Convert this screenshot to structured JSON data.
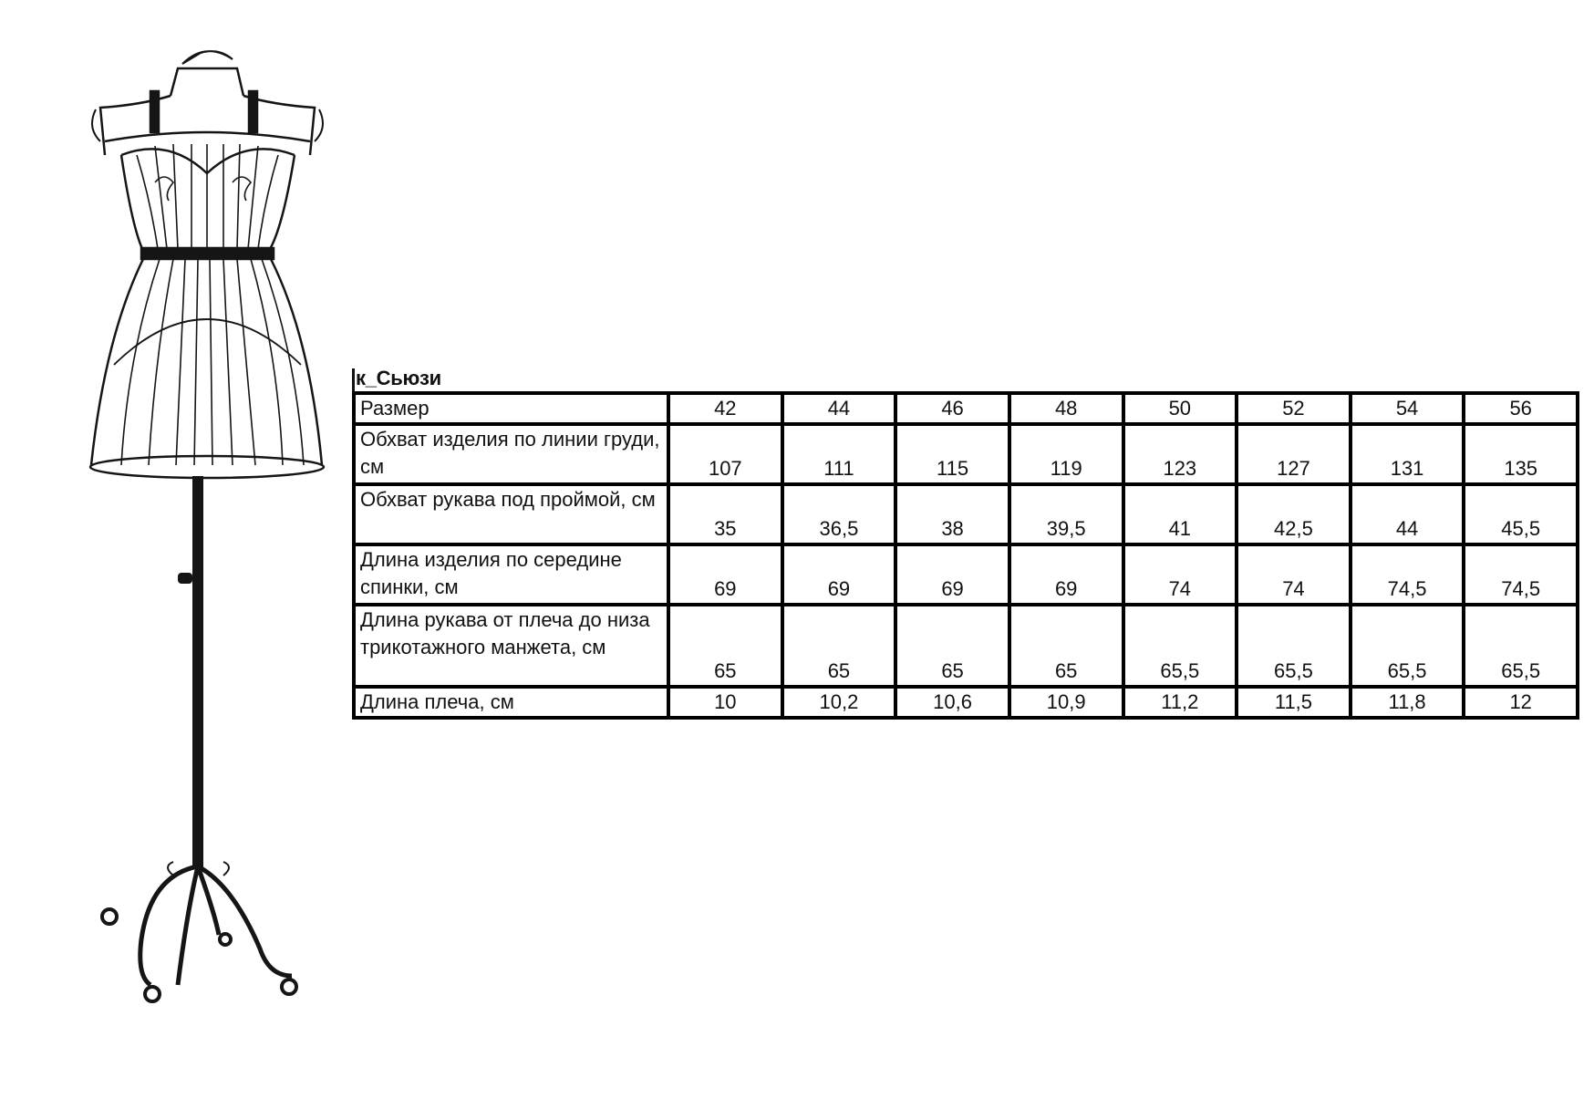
{
  "title": "к_Сьюзи",
  "table": {
    "header": {
      "label": "Размер",
      "values": [
        "42",
        "44",
        "46",
        "48",
        "50",
        "52",
        "54",
        "56"
      ]
    },
    "rows": [
      {
        "label": "Обхват изделия по линии груди, см",
        "values": [
          "107",
          "111",
          "115",
          "119",
          "123",
          "127",
          "131",
          "135"
        ]
      },
      {
        "label": "Обхват рукава под проймой, см",
        "values": [
          "35",
          "36,5",
          "38",
          "39,5",
          "41",
          "42,5",
          "44",
          "45,5"
        ]
      },
      {
        "label": "Длина изделия по середине спинки, см",
        "values": [
          "69",
          "69",
          "69",
          "69",
          "74",
          "74",
          "74,5",
          "74,5"
        ]
      },
      {
        "label": "Длина рукава от плеча до низа трикотажного манжета, см",
        "values": [
          "65",
          "65",
          "65",
          "65",
          "65,5",
          "65,5",
          "65,5",
          "65,5"
        ]
      },
      {
        "label": "Длина плеча, см",
        "values": [
          "10",
          "10,2",
          "10,6",
          "10,9",
          "11,2",
          "11,5",
          "11,8",
          "12"
        ]
      }
    ]
  },
  "image": {
    "subject": "wire-dress-form-mannequin"
  }
}
